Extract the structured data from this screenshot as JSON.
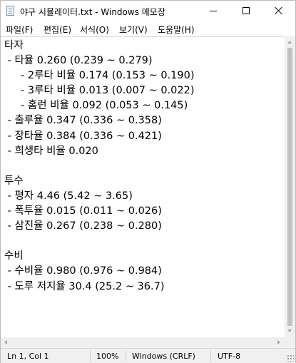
{
  "window": {
    "title": "야구 시뮬레이터.txt - Windows 메모장"
  },
  "menu": {
    "file": "파일(F)",
    "edit": "편집(E)",
    "format": "서식(O)",
    "view": "보기(V)",
    "help": "도움말(H)"
  },
  "document": {
    "lines": [
      "타자",
      " - 타율 0.260 (0.239 ~ 0.279)",
      "     - 2루타 비율 0.174 (0.153 ~ 0.190)",
      "     - 3루타 비율 0.013 (0.007 ~ 0.022)",
      "     - 홈런 비율 0.092 (0.053 ~ 0.145)",
      " - 출루율 0.347 (0.336 ~ 0.358)",
      " - 장타율 0.384 (0.336 ~ 0.421)",
      " - 희생타 비율 0.020",
      "",
      "투수",
      " - 평자 4.46 (5.42 ~ 3.65)",
      " - 폭투율 0.015 (0.011 ~ 0.026)",
      " - 삼진율 0.267 (0.238 ~ 0.280)",
      "",
      "수비",
      " - 수비율 0.980 (0.976 ~ 0.984)",
      " - 도루 저지율 30.4 (25.2 ~ 36.7)"
    ]
  },
  "status": {
    "position": "Ln 1, Col 1",
    "zoom": "100%",
    "line_ending": "Windows (CRLF)",
    "encoding": "UTF-8"
  },
  "icons": {
    "app": "notepad-icon",
    "minimize": "minimize-icon",
    "maximize": "maximize-icon",
    "close": "close-icon"
  }
}
